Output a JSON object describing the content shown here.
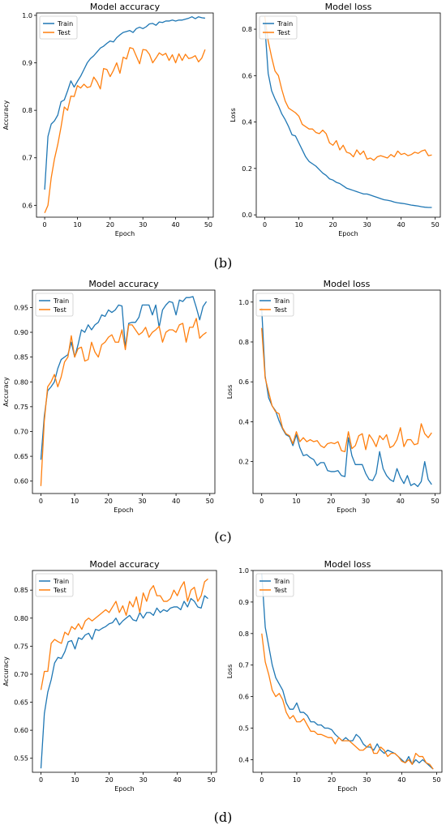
{
  "panel_labels": [
    "(b)",
    "(c)",
    "(d)"
  ],
  "colors": {
    "train": "#1f77b4",
    "test": "#ff7f0e"
  },
  "chart_data": [
    {
      "type": "line",
      "panel": "b",
      "title": "Model accuracy",
      "xlabel": "Epoch",
      "ylabel": "Accuracy",
      "xlim": [
        -2.5,
        51.5
      ],
      "ylim": [
        0.575,
        1.005
      ],
      "xticks": [
        0,
        10,
        20,
        30,
        40,
        50
      ],
      "yticks": [
        0.6,
        0.7,
        0.8,
        0.9,
        1.0
      ],
      "ytick_labels": [
        "0.6",
        "0.7",
        "0.8",
        "0.9",
        "1.0"
      ],
      "legend": "top-left",
      "series": [
        {
          "name": "Train",
          "values": [
            0.633,
            0.745,
            0.771,
            0.778,
            0.79,
            0.818,
            0.822,
            0.841,
            0.862,
            0.849,
            0.861,
            0.872,
            0.886,
            0.9,
            0.909,
            0.915,
            0.923,
            0.931,
            0.935,
            0.941,
            0.946,
            0.944,
            0.953,
            0.959,
            0.964,
            0.966,
            0.968,
            0.964,
            0.972,
            0.975,
            0.972,
            0.976,
            0.982,
            0.983,
            0.979,
            0.986,
            0.985,
            0.988,
            0.988,
            0.99,
            0.988,
            0.99,
            0.99,
            0.992,
            0.994,
            0.997,
            0.993,
            0.997,
            0.995,
            0.994
          ]
        },
        {
          "name": "Test",
          "values": [
            0.584,
            0.6,
            0.658,
            0.698,
            0.728,
            0.765,
            0.807,
            0.8,
            0.83,
            0.829,
            0.852,
            0.847,
            0.855,
            0.848,
            0.85,
            0.87,
            0.86,
            0.845,
            0.888,
            0.886,
            0.871,
            0.884,
            0.9,
            0.878,
            0.912,
            0.908,
            0.932,
            0.93,
            0.914,
            0.898,
            0.928,
            0.927,
            0.918,
            0.9,
            0.91,
            0.921,
            0.916,
            0.92,
            0.905,
            0.917,
            0.9,
            0.919,
            0.905,
            0.918,
            0.909,
            0.911,
            0.915,
            0.902,
            0.91,
            0.928
          ]
        }
      ]
    },
    {
      "type": "line",
      "panel": "b",
      "title": "Model loss",
      "xlabel": "Epoch",
      "ylabel": "Loss",
      "xlim": [
        -2.5,
        51.5
      ],
      "ylim": [
        -0.01,
        0.87
      ],
      "xticks": [
        0,
        10,
        20,
        30,
        40,
        50
      ],
      "yticks": [
        0.0,
        0.2,
        0.4,
        0.6,
        0.8
      ],
      "ytick_labels": [
        "0.0",
        "0.2",
        "0.4",
        "0.6",
        "0.8"
      ],
      "legend": "top-left",
      "series": [
        {
          "name": "Train",
          "values": [
            0.82,
            0.61,
            0.535,
            0.5,
            0.47,
            0.435,
            0.41,
            0.38,
            0.345,
            0.34,
            0.31,
            0.28,
            0.25,
            0.23,
            0.22,
            0.21,
            0.195,
            0.18,
            0.17,
            0.155,
            0.15,
            0.14,
            0.135,
            0.125,
            0.115,
            0.11,
            0.105,
            0.1,
            0.095,
            0.09,
            0.09,
            0.085,
            0.08,
            0.075,
            0.07,
            0.065,
            0.063,
            0.06,
            0.055,
            0.052,
            0.05,
            0.048,
            0.045,
            0.042,
            0.04,
            0.038,
            0.035,
            0.033,
            0.032,
            0.032
          ]
        },
        {
          "name": "Test",
          "values": [
            0.855,
            0.75,
            0.68,
            0.62,
            0.6,
            0.54,
            0.49,
            0.46,
            0.45,
            0.44,
            0.425,
            0.39,
            0.38,
            0.37,
            0.37,
            0.355,
            0.35,
            0.365,
            0.35,
            0.31,
            0.3,
            0.32,
            0.28,
            0.3,
            0.27,
            0.265,
            0.25,
            0.28,
            0.26,
            0.275,
            0.24,
            0.245,
            0.235,
            0.25,
            0.255,
            0.25,
            0.245,
            0.26,
            0.25,
            0.275,
            0.26,
            0.265,
            0.255,
            0.26,
            0.27,
            0.265,
            0.275,
            0.28,
            0.255,
            0.258
          ]
        }
      ]
    },
    {
      "type": "line",
      "panel": "c",
      "title": "Model accuracy",
      "xlabel": "Epoch",
      "ylabel": "Accuracy",
      "xlim": [
        -2.5,
        51.5
      ],
      "ylim": [
        0.575,
        0.985
      ],
      "xticks": [
        0,
        10,
        20,
        30,
        40,
        50
      ],
      "yticks": [
        0.6,
        0.65,
        0.7,
        0.75,
        0.8,
        0.85,
        0.9,
        0.95
      ],
      "ytick_labels": [
        "0.60",
        "0.65",
        "0.70",
        "0.75",
        "0.80",
        "0.85",
        "0.90",
        "0.95"
      ],
      "legend": "top-left",
      "series": [
        {
          "name": "Train",
          "values": [
            0.643,
            0.73,
            0.782,
            0.79,
            0.8,
            0.827,
            0.845,
            0.85,
            0.855,
            0.88,
            0.85,
            0.875,
            0.905,
            0.9,
            0.915,
            0.905,
            0.915,
            0.92,
            0.935,
            0.932,
            0.945,
            0.94,
            0.945,
            0.955,
            0.953,
            0.87,
            0.918,
            0.92,
            0.92,
            0.93,
            0.955,
            0.955,
            0.955,
            0.935,
            0.955,
            0.91,
            0.945,
            0.955,
            0.962,
            0.96,
            0.935,
            0.965,
            0.962,
            0.97,
            0.97,
            0.972,
            0.95,
            0.925,
            0.952,
            0.962
          ]
        },
        {
          "name": "Test",
          "values": [
            0.59,
            0.72,
            0.79,
            0.8,
            0.815,
            0.79,
            0.81,
            0.84,
            0.85,
            0.893,
            0.85,
            0.867,
            0.87,
            0.842,
            0.845,
            0.88,
            0.86,
            0.85,
            0.875,
            0.88,
            0.89,
            0.895,
            0.88,
            0.88,
            0.905,
            0.865,
            0.915,
            0.915,
            0.905,
            0.895,
            0.9,
            0.91,
            0.89,
            0.9,
            0.905,
            0.912,
            0.88,
            0.9,
            0.905,
            0.905,
            0.9,
            0.915,
            0.918,
            0.88,
            0.91,
            0.91,
            0.928,
            0.888,
            0.895,
            0.9
          ]
        }
      ]
    },
    {
      "type": "line",
      "panel": "c",
      "title": "Model loss",
      "xlabel": "Epoch",
      "ylabel": "Loss",
      "xlim": [
        -2.5,
        51.5
      ],
      "ylim": [
        0.04,
        1.06
      ],
      "xticks": [
        0,
        10,
        20,
        30,
        40,
        50
      ],
      "yticks": [
        0.2,
        0.4,
        0.6,
        0.8,
        1.0
      ],
      "ytick_labels": [
        "0.2",
        "0.4",
        "0.6",
        "0.8",
        "1.0"
      ],
      "legend": "top-left",
      "series": [
        {
          "name": "Train",
          "values": [
            0.97,
            0.63,
            0.52,
            0.48,
            0.455,
            0.405,
            0.365,
            0.335,
            0.325,
            0.28,
            0.335,
            0.27,
            0.23,
            0.235,
            0.22,
            0.21,
            0.18,
            0.195,
            0.195,
            0.155,
            0.15,
            0.15,
            0.155,
            0.13,
            0.125,
            0.32,
            0.23,
            0.185,
            0.185,
            0.185,
            0.14,
            0.11,
            0.105,
            0.14,
            0.25,
            0.165,
            0.13,
            0.11,
            0.1,
            0.165,
            0.12,
            0.09,
            0.13,
            0.08,
            0.09,
            0.075,
            0.1,
            0.2,
            0.11,
            0.085
          ]
        },
        {
          "name": "Test",
          "values": [
            0.87,
            0.62,
            0.55,
            0.48,
            0.45,
            0.44,
            0.37,
            0.34,
            0.33,
            0.29,
            0.35,
            0.3,
            0.32,
            0.3,
            0.31,
            0.3,
            0.305,
            0.28,
            0.27,
            0.29,
            0.295,
            0.29,
            0.3,
            0.255,
            0.25,
            0.35,
            0.265,
            0.28,
            0.33,
            0.34,
            0.26,
            0.335,
            0.31,
            0.275,
            0.33,
            0.31,
            0.335,
            0.27,
            0.28,
            0.31,
            0.37,
            0.275,
            0.31,
            0.31,
            0.285,
            0.29,
            0.39,
            0.34,
            0.32,
            0.345
          ]
        }
      ]
    },
    {
      "type": "line",
      "panel": "d",
      "title": "Model accuracy",
      "xlabel": "Epoch",
      "ylabel": "Accuracy",
      "xlim": [
        -2.5,
        51.5
      ],
      "ylim": [
        0.525,
        0.885
      ],
      "xticks": [
        0,
        10,
        20,
        30,
        40,
        50
      ],
      "yticks": [
        0.55,
        0.6,
        0.65,
        0.7,
        0.75,
        0.8,
        0.85
      ],
      "ytick_labels": [
        "0.55",
        "0.60",
        "0.65",
        "0.70",
        "0.75",
        "0.80",
        "0.85"
      ],
      "legend": "top-left",
      "series": [
        {
          "name": "Train",
          "values": [
            0.532,
            0.63,
            0.668,
            0.69,
            0.72,
            0.73,
            0.728,
            0.74,
            0.758,
            0.76,
            0.745,
            0.765,
            0.762,
            0.77,
            0.773,
            0.762,
            0.78,
            0.778,
            0.782,
            0.785,
            0.79,
            0.792,
            0.8,
            0.788,
            0.795,
            0.8,
            0.805,
            0.797,
            0.795,
            0.81,
            0.8,
            0.81,
            0.81,
            0.805,
            0.818,
            0.81,
            0.815,
            0.812,
            0.818,
            0.82,
            0.82,
            0.815,
            0.83,
            0.82,
            0.835,
            0.83,
            0.82,
            0.818,
            0.84,
            0.835
          ]
        },
        {
          "name": "Test",
          "values": [
            0.672,
            0.705,
            0.705,
            0.755,
            0.762,
            0.758,
            0.755,
            0.775,
            0.77,
            0.785,
            0.78,
            0.79,
            0.78,
            0.795,
            0.8,
            0.795,
            0.8,
            0.805,
            0.81,
            0.815,
            0.81,
            0.82,
            0.83,
            0.81,
            0.822,
            0.805,
            0.83,
            0.82,
            0.838,
            0.81,
            0.845,
            0.83,
            0.85,
            0.858,
            0.84,
            0.84,
            0.83,
            0.83,
            0.835,
            0.85,
            0.84,
            0.855,
            0.865,
            0.83,
            0.85,
            0.855,
            0.83,
            0.84,
            0.865,
            0.87
          ]
        }
      ]
    },
    {
      "type": "line",
      "panel": "d",
      "title": "Model loss",
      "xlabel": "Epoch",
      "ylabel": "Loss",
      "xlim": [
        -2.5,
        51.5
      ],
      "ylim": [
        0.36,
        1.0
      ],
      "xticks": [
        0,
        10,
        20,
        30,
        40,
        50
      ],
      "yticks": [
        0.4,
        0.5,
        0.6,
        0.7,
        0.8,
        0.9,
        1.0
      ],
      "ytick_labels": [
        "0.4",
        "0.5",
        "0.6",
        "0.7",
        "0.8",
        "0.9",
        "1.0"
      ],
      "legend": "top-left",
      "series": [
        {
          "name": "Train",
          "values": [
            0.99,
            0.82,
            0.76,
            0.7,
            0.66,
            0.64,
            0.62,
            0.58,
            0.56,
            0.56,
            0.58,
            0.55,
            0.55,
            0.54,
            0.52,
            0.52,
            0.51,
            0.51,
            0.5,
            0.5,
            0.495,
            0.48,
            0.47,
            0.46,
            0.47,
            0.46,
            0.46,
            0.48,
            0.47,
            0.45,
            0.44,
            0.44,
            0.43,
            0.45,
            0.43,
            0.42,
            0.43,
            0.425,
            0.42,
            0.41,
            0.4,
            0.39,
            0.41,
            0.385,
            0.4,
            0.39,
            0.4,
            0.39,
            0.38,
            0.37
          ]
        },
        {
          "name": "Test",
          "values": [
            0.8,
            0.71,
            0.67,
            0.62,
            0.6,
            0.61,
            0.59,
            0.55,
            0.53,
            0.54,
            0.52,
            0.52,
            0.53,
            0.51,
            0.49,
            0.49,
            0.48,
            0.48,
            0.475,
            0.47,
            0.47,
            0.45,
            0.47,
            0.46,
            0.46,
            0.46,
            0.45,
            0.44,
            0.43,
            0.43,
            0.44,
            0.45,
            0.42,
            0.42,
            0.44,
            0.43,
            0.41,
            0.42,
            0.42,
            0.41,
            0.395,
            0.39,
            0.4,
            0.385,
            0.42,
            0.41,
            0.41,
            0.39,
            0.385,
            0.37
          ]
        }
      ]
    }
  ]
}
